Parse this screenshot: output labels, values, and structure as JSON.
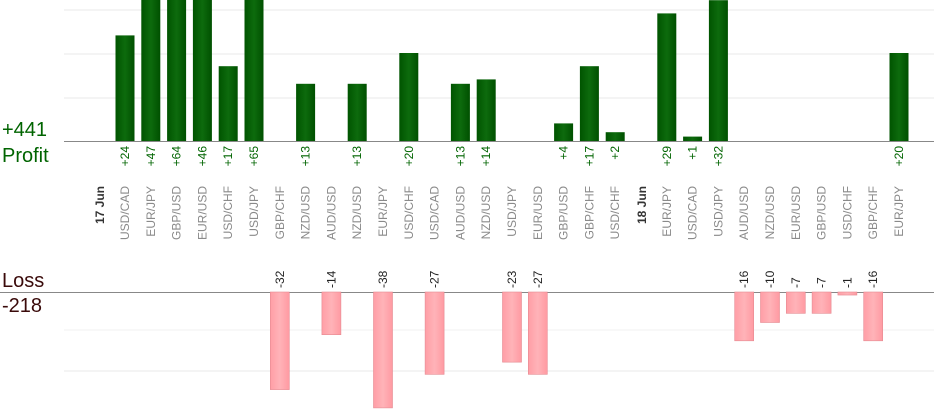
{
  "labels": {
    "profit_total": "+441",
    "profit": "Profit",
    "loss": "Loss",
    "loss_total": "-218"
  },
  "colors": {
    "profit_bar": "#0d6b0d",
    "profit_text": "#006400",
    "loss_bar": "#ffb3b8",
    "loss_text": "#222222",
    "grid": "#e8e8e8",
    "axis": "#888888"
  },
  "chart_data": {
    "type": "bar",
    "subtype": "diverging profit/loss by trade",
    "date_markers": [
      {
        "label": "17 Jun",
        "before_index": 0
      },
      {
        "label": "18 Jun",
        "before_index": 20
      }
    ],
    "categories": [
      "USD/CAD",
      "EUR/JPY",
      "GBP/USD",
      "EUR/USD",
      "USD/CHF",
      "USD/JPY",
      "GBP/CHF",
      "NZD/USD",
      "AUD/USD",
      "NZD/USD",
      "EUR/JPY",
      "USD/CHF",
      "USD/CAD",
      "AUD/USD",
      "NZD/USD",
      "USD/JPY",
      "EUR/USD",
      "GBP/USD",
      "GBP/CHF",
      "USD/CHF",
      "EUR/JPY",
      "USD/CAD",
      "USD/JPY",
      "AUD/USD",
      "NZD/USD",
      "EUR/USD",
      "GBP/USD",
      "USD/CHF",
      "GBP/CHF",
      "EUR/JPY"
    ],
    "values": [
      24,
      47,
      64,
      46,
      17,
      65,
      -32,
      13,
      -14,
      13,
      -38,
      20,
      -27,
      13,
      14,
      -23,
      -27,
      4,
      17,
      2,
      29,
      1,
      32,
      -16,
      -10,
      -7,
      -7,
      -1,
      -16,
      20
    ],
    "value_labels": [
      "+24",
      "+47",
      "+64",
      "+46",
      "+17",
      "+65",
      "-32",
      "+13",
      "-14",
      "+13",
      "-38",
      "+20",
      "-27",
      "+13",
      "+14",
      "-23",
      "-27",
      "+4",
      "+17",
      "+2",
      "+29",
      "+1",
      "+32",
      "-16",
      "-10",
      "-7",
      "-7",
      "-1",
      "-16",
      "+20"
    ],
    "profit_axis": {
      "min": 0,
      "max": 32
    },
    "loss_axis": {
      "min": 0,
      "max": 40
    },
    "grid": true
  }
}
